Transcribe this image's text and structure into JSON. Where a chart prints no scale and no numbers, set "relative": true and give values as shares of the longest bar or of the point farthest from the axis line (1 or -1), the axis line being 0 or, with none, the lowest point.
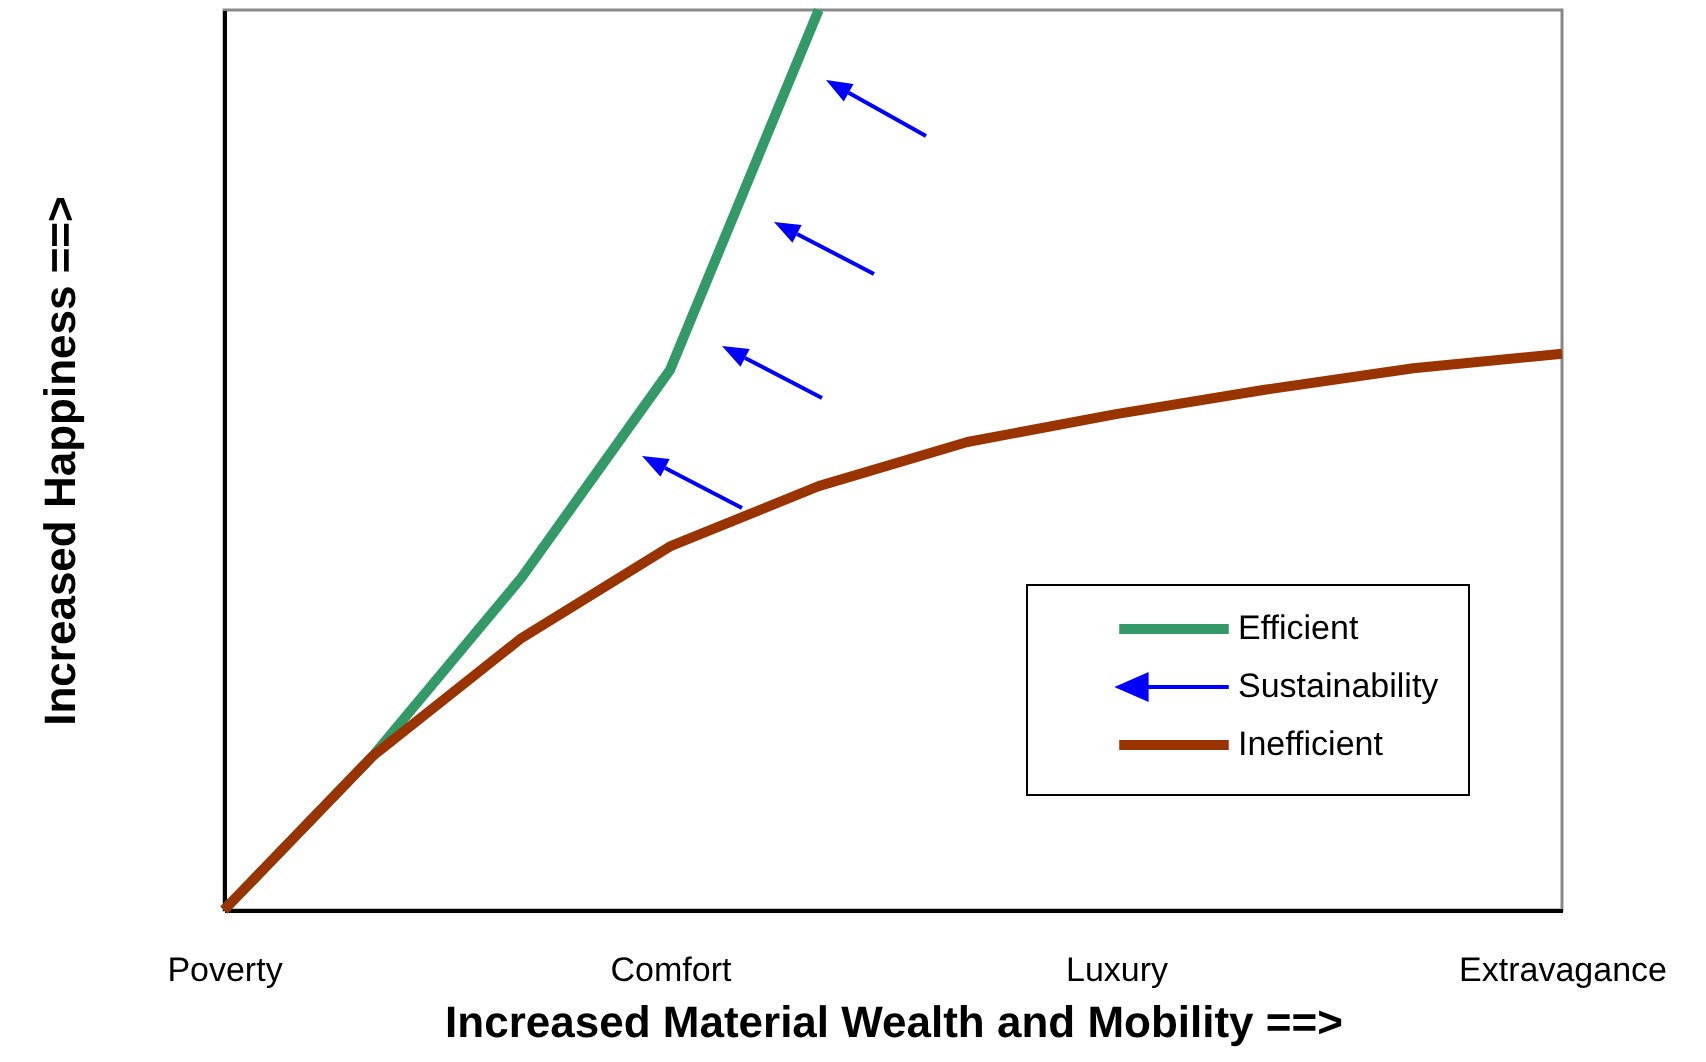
{
  "chart_data": {
    "type": "line",
    "relative": true,
    "xlabel": "Increased Material Wealth and Mobility ==>",
    "ylabel": "Increased Happiness ==>",
    "categories": [
      "Poverty",
      null,
      null,
      "Comfort",
      null,
      null,
      "Luxury",
      null,
      null,
      "Extravagance"
    ],
    "series": [
      {
        "name": "Efficient",
        "color": "#339966",
        "values": [
          0,
          0.171,
          0.369,
          0.6,
          1,
          null,
          null,
          null,
          null,
          null
        ]
      },
      {
        "name": "Inefficient",
        "color": "#993300",
        "values": [
          0,
          0.171,
          0.302,
          0.404,
          0.471,
          0.52,
          0.551,
          0.578,
          0.602,
          0.618
        ]
      }
    ],
    "annotations": [
      "Sustainability"
    ],
    "legend": "bottom right",
    "grid": false,
    "marker": "none",
    "line_style": "solid"
  }
}
